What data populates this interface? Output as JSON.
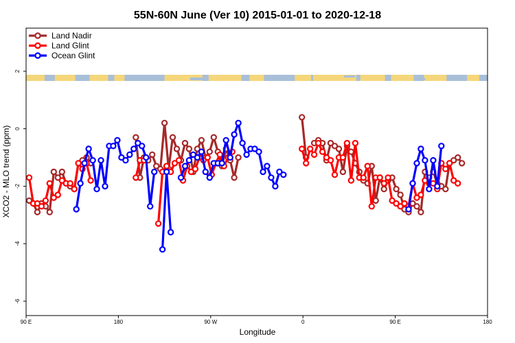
{
  "chart_data": {
    "type": "line",
    "title": "55N-60N June (Ver 10)   2015-01-01 to 2020-12-18",
    "xlabel": "Longitude",
    "ylabel": "XCO2 - MLO trend (ppm)",
    "xlim": [
      90,
      540
    ],
    "ylim": [
      -6.5,
      3.5
    ],
    "x_ticks": [
      {
        "value": 90,
        "label": "90 E"
      },
      {
        "value": 180,
        "label": "180"
      },
      {
        "value": 270,
        "label": "90 W"
      },
      {
        "value": 360,
        "label": "0"
      },
      {
        "value": 450,
        "label": "90 E"
      },
      {
        "value": 540,
        "label": "180"
      }
    ],
    "y_ticks": [
      {
        "value": 2,
        "label": "2"
      },
      {
        "value": 0,
        "label": "0"
      },
      {
        "value": -2,
        "label": "-2"
      },
      {
        "value": -4,
        "label": "-4"
      },
      {
        "value": -6,
        "label": "-6"
      }
    ],
    "legend_position": "top-left",
    "series": [
      {
        "name": "Land Nadir",
        "color": "#a52a2a",
        "points": [
          [
            93,
            -2.5
          ],
          [
            97,
            -2.6
          ],
          [
            101,
            -2.9
          ],
          [
            105,
            -2.6
          ],
          [
            109,
            -2.7
          ],
          [
            113,
            -2.9
          ],
          [
            117,
            -1.5
          ],
          [
            121,
            -1.7
          ],
          [
            125,
            -1.5
          ],
          [
            129,
            -1.9
          ],
          [
            133,
            -2.0
          ],
          [
            137,
            -2.1
          ],
          [
            141,
            -1.2
          ],
          [
            145,
            -1.1
          ],
          [
            149,
            -1.0
          ],
          [
            153,
            -1.2
          ],
          [
            197,
            -0.3
          ],
          [
            201,
            -1.7
          ],
          [
            205,
            -1.0
          ],
          [
            209,
            -1.1
          ],
          [
            213,
            -0.9
          ],
          [
            217,
            -1.3
          ],
          [
            221,
            -1.4
          ],
          [
            225,
            0.2
          ],
          [
            229,
            -1.4
          ],
          [
            233,
            -0.3
          ],
          [
            237,
            -0.7
          ],
          [
            241,
            -1.1
          ],
          [
            245,
            -0.5
          ],
          [
            249,
            -0.7
          ],
          [
            253,
            -1.5
          ],
          [
            257,
            -0.7
          ],
          [
            261,
            -0.4
          ],
          [
            265,
            -1.0
          ],
          [
            269,
            -0.8
          ],
          [
            273,
            -0.3
          ],
          [
            277,
            -0.8
          ],
          [
            281,
            -1.3
          ],
          [
            285,
            -0.7
          ],
          [
            289,
            -1.1
          ],
          [
            293,
            -1.7
          ],
          [
            297,
            -1.0
          ],
          [
            359,
            0.4
          ],
          [
            363,
            -1.0
          ],
          [
            371,
            -0.5
          ],
          [
            375,
            -0.4
          ],
          [
            379,
            -0.5
          ],
          [
            383,
            -1.1
          ],
          [
            387,
            -0.5
          ],
          [
            391,
            -0.6
          ],
          [
            395,
            -0.7
          ],
          [
            399,
            -1.5
          ],
          [
            403,
            -0.6
          ],
          [
            407,
            -0.8
          ],
          [
            411,
            -1.2
          ],
          [
            415,
            -1.5
          ],
          [
            419,
            -1.8
          ],
          [
            423,
            -1.9
          ],
          [
            427,
            -1.3
          ],
          [
            431,
            -2.5
          ],
          [
            435,
            -1.7
          ],
          [
            439,
            -2.1
          ],
          [
            443,
            -1.8
          ],
          [
            447,
            -1.7
          ],
          [
            451,
            -2.1
          ],
          [
            455,
            -2.3
          ],
          [
            459,
            -2.8
          ],
          [
            463,
            -2.9
          ],
          [
            467,
            -2.6
          ],
          [
            471,
            -2.7
          ],
          [
            475,
            -2.9
          ],
          [
            479,
            -1.5
          ],
          [
            483,
            -1.7
          ],
          [
            487,
            -1.5
          ],
          [
            491,
            -1.9
          ],
          [
            495,
            -2.0
          ],
          [
            499,
            -2.1
          ],
          [
            503,
            -1.2
          ],
          [
            507,
            -1.1
          ],
          [
            511,
            -1.0
          ],
          [
            515,
            -1.2
          ]
        ]
      },
      {
        "name": "Land Glint",
        "color": "#ff0000",
        "points": [
          [
            93,
            -1.7
          ],
          [
            97,
            -2.6
          ],
          [
            101,
            -2.6
          ],
          [
            105,
            -2.7
          ],
          [
            109,
            -2.5
          ],
          [
            113,
            -1.9
          ],
          [
            117,
            -2.4
          ],
          [
            121,
            -2.3
          ],
          [
            125,
            -1.8
          ],
          [
            129,
            -1.9
          ],
          [
            133,
            -1.9
          ],
          [
            137,
            -2.1
          ],
          [
            141,
            -1.2
          ],
          [
            145,
            -1.4
          ],
          [
            149,
            -1.2
          ],
          [
            153,
            -1.8
          ],
          [
            197,
            -1.7
          ],
          [
            201,
            -1.1
          ],
          [
            205,
            -1.1
          ],
          [
            219,
            -3.3
          ],
          [
            223,
            -1.5
          ],
          [
            227,
            -1.3
          ],
          [
            231,
            -1.5
          ],
          [
            235,
            -1.2
          ],
          [
            239,
            -1.1
          ],
          [
            243,
            -1.8
          ],
          [
            247,
            -1.3
          ],
          [
            251,
            -1.5
          ],
          [
            255,
            -1.4
          ],
          [
            259,
            -1.0
          ],
          [
            263,
            -1.1
          ],
          [
            267,
            -1.0
          ],
          [
            271,
            -1.6
          ],
          [
            275,
            -1.2
          ],
          [
            279,
            -0.9
          ],
          [
            283,
            -1.3
          ],
          [
            287,
            -1.0
          ],
          [
            291,
            -0.8
          ],
          [
            359,
            -0.7
          ],
          [
            363,
            -1.2
          ],
          [
            367,
            -0.7
          ],
          [
            371,
            -0.9
          ],
          [
            375,
            -0.5
          ],
          [
            379,
            -0.8
          ],
          [
            383,
            -1.0
          ],
          [
            387,
            -1.1
          ],
          [
            391,
            -1.6
          ],
          [
            395,
            -1.0
          ],
          [
            399,
            -1.0
          ],
          [
            403,
            -0.5
          ],
          [
            407,
            -1.8
          ],
          [
            411,
            -0.5
          ],
          [
            415,
            -1.7
          ],
          [
            419,
            -1.7
          ],
          [
            423,
            -1.3
          ],
          [
            427,
            -2.7
          ],
          [
            431,
            -1.7
          ],
          [
            435,
            -1.7
          ],
          [
            439,
            -1.9
          ],
          [
            443,
            -1.7
          ],
          [
            447,
            -2.5
          ],
          [
            451,
            -2.6
          ],
          [
            455,
            -2.7
          ],
          [
            459,
            -2.6
          ],
          [
            463,
            -2.7
          ],
          [
            467,
            -1.9
          ],
          [
            471,
            -2.4
          ],
          [
            475,
            -2.3
          ],
          [
            479,
            -1.8
          ],
          [
            483,
            -1.9
          ],
          [
            487,
            -1.9
          ],
          [
            491,
            -2.1
          ],
          [
            495,
            -1.2
          ],
          [
            499,
            -1.4
          ],
          [
            503,
            -1.2
          ],
          [
            507,
            -1.8
          ],
          [
            511,
            -1.9
          ]
        ]
      },
      {
        "name": "Ocean Glint",
        "color": "#0000ff",
        "points": [
          [
            139,
            -2.8
          ],
          [
            143,
            -1.9
          ],
          [
            147,
            -1.2
          ],
          [
            151,
            -0.7
          ],
          [
            155,
            -1.1
          ],
          [
            159,
            -2.1
          ],
          [
            163,
            -1.1
          ],
          [
            167,
            -2.0
          ],
          [
            171,
            -0.6
          ],
          [
            175,
            -0.6
          ],
          [
            179,
            -0.4
          ],
          [
            183,
            -1.0
          ],
          [
            187,
            -1.1
          ],
          [
            191,
            -0.9
          ],
          [
            195,
            -0.7
          ],
          [
            199,
            -0.5
          ],
          [
            203,
            -0.6
          ],
          [
            207,
            -1.0
          ],
          [
            211,
            -2.7
          ],
          [
            215,
            -1.5
          ],
          [
            223,
            -4.2
          ],
          [
            227,
            -1.5
          ],
          [
            231,
            -3.6
          ],
          [
            241,
            -1.7
          ],
          [
            245,
            -1.3
          ],
          [
            249,
            -1.1
          ],
          [
            253,
            -0.9
          ],
          [
            257,
            -1.0
          ],
          [
            261,
            -0.8
          ],
          [
            265,
            -1.5
          ],
          [
            269,
            -1.7
          ],
          [
            273,
            -1.2
          ],
          [
            277,
            -1.2
          ],
          [
            281,
            -1.2
          ],
          [
            285,
            -0.4
          ],
          [
            289,
            -1.0
          ],
          [
            293,
            -0.2
          ],
          [
            297,
            0.2
          ],
          [
            301,
            -0.5
          ],
          [
            305,
            -0.9
          ],
          [
            309,
            -0.7
          ],
          [
            313,
            -0.7
          ],
          [
            317,
            -0.8
          ],
          [
            321,
            -1.5
          ],
          [
            325,
            -1.3
          ],
          [
            329,
            -1.7
          ],
          [
            333,
            -2.0
          ],
          [
            337,
            -1.5
          ],
          [
            341,
            -1.6
          ],
          [
            463,
            -2.8
          ],
          [
            467,
            -1.9
          ],
          [
            471,
            -1.2
          ],
          [
            475,
            -0.7
          ],
          [
            479,
            -1.1
          ],
          [
            483,
            -2.1
          ],
          [
            487,
            -1.1
          ],
          [
            491,
            -2.0
          ],
          [
            495,
            -0.6
          ]
        ]
      }
    ],
    "map_strip_colors": {
      "land": "#f5d67a",
      "ocean": "#a8bfd8"
    }
  }
}
